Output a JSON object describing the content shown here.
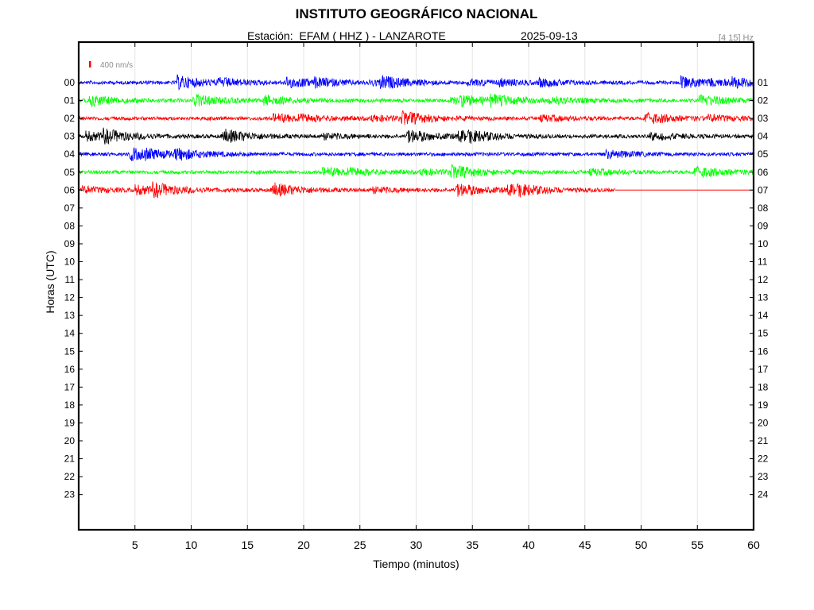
{
  "header": {
    "title": "INSTITUTO GEOGRÁFICO NACIONAL",
    "station": "Estación:  EFAM ( HHZ ) - LANZAROTE",
    "date": "2025-09-13",
    "filter": "[4 15] Hz"
  },
  "chart_data": {
    "type": "line",
    "title": "INSTITUTO GEOGRÁFICO NACIONAL",
    "xlabel": "Tiempo (minutos)",
    "ylabel": "Horas (UTC)",
    "xlim": [
      0,
      60
    ],
    "x_ticks": [
      5,
      10,
      15,
      20,
      25,
      30,
      35,
      40,
      45,
      50,
      55,
      60
    ],
    "left_labels": [
      "00",
      "01",
      "02",
      "03",
      "04",
      "05",
      "06",
      "07",
      "08",
      "09",
      "10",
      "11",
      "12",
      "13",
      "14",
      "15",
      "16",
      "17",
      "18",
      "19",
      "20",
      "21",
      "22",
      "23"
    ],
    "right_labels": [
      "01",
      "02",
      "03",
      "04",
      "05",
      "06",
      "07",
      "08",
      "09",
      "10",
      "11",
      "12",
      "13",
      "14",
      "15",
      "16",
      "17",
      "18",
      "19",
      "20",
      "21",
      "22",
      "23",
      "24"
    ],
    "grid": "vertical",
    "scale_bar": {
      "label": "400 nm/s",
      "color": "#ff0000"
    },
    "traces": [
      {
        "hour": "00",
        "color": "#0000ff",
        "end_minute": 60,
        "amplitude": "moderate"
      },
      {
        "hour": "01",
        "color": "#00ff00",
        "end_minute": 60,
        "amplitude": "moderate"
      },
      {
        "hour": "02",
        "color": "#ff0000",
        "end_minute": 60,
        "amplitude": "moderate"
      },
      {
        "hour": "03",
        "color": "#000000",
        "end_minute": 60,
        "amplitude": "moderate"
      },
      {
        "hour": "04",
        "color": "#0000ff",
        "end_minute": 60,
        "amplitude": "moderate"
      },
      {
        "hour": "05",
        "color": "#00ff00",
        "end_minute": 60,
        "amplitude": "moderate"
      },
      {
        "hour": "06",
        "color": "#ff0000",
        "end_minute": 47.7,
        "amplitude": "moderate"
      }
    ]
  }
}
